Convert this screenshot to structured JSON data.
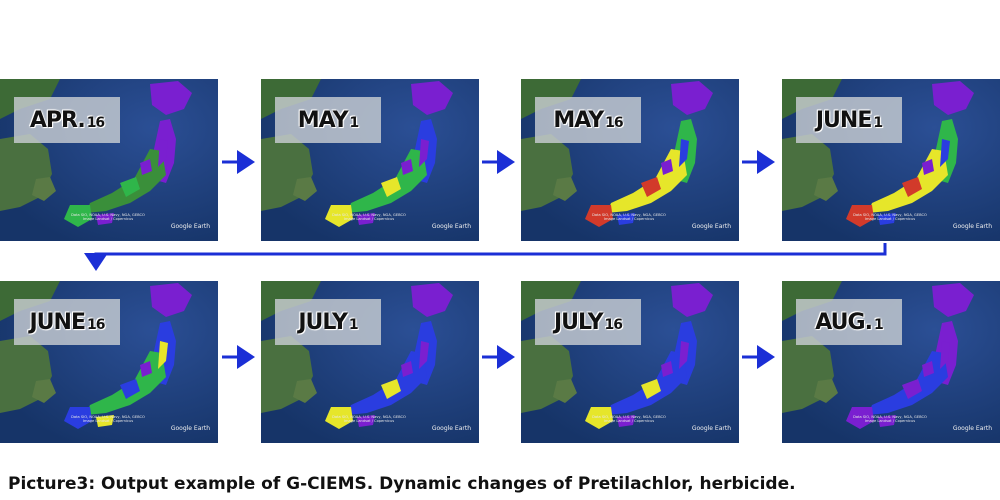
{
  "panels": [
    {
      "month": "APR.",
      "day": "16",
      "credit_lines": [
        "Data SIO, NOAA, U.S. Navy, NGA, GEBCO",
        "Image Landsat / Copernicus"
      ],
      "logo": "Google Earth",
      "dominant": "purple-green"
    },
    {
      "month": "MAY",
      "day": "1",
      "credit_lines": [
        "Data SIO, NOAA, U.S. Navy, NGA, GEBCO",
        "Image Landsat / Copernicus"
      ],
      "logo": "Google Earth",
      "dominant": "purple-blue-green"
    },
    {
      "month": "MAY",
      "day": "16",
      "credit_lines": [
        "Data SIO, NOAA, U.S. Navy, NGA, GEBCO",
        "Image Landsat / Copernicus"
      ],
      "logo": "Google Earth",
      "dominant": "green-yellow"
    },
    {
      "month": "JUNE",
      "day": "1",
      "credit_lines": [
        "Data SIO, NOAA, U.S. Navy, NGA, GEBCO",
        "Image Landsat / Copernicus"
      ],
      "logo": "Google Earth",
      "dominant": "green-yellow"
    },
    {
      "month": "JUNE",
      "day": "16",
      "credit_lines": [
        "Data SIO, NOAA, U.S. Navy, NGA, GEBCO",
        "Image Landsat / Copernicus"
      ],
      "logo": "Google Earth",
      "dominant": "blue-green"
    },
    {
      "month": "JULY",
      "day": "1",
      "credit_lines": [
        "Data SIO, NOAA, U.S. Navy, NGA, GEBCO",
        "Image Landsat / Copernicus"
      ],
      "logo": "Google Earth",
      "dominant": "blue-purple"
    },
    {
      "month": "JULY",
      "day": "16",
      "credit_lines": [
        "Data SIO, NOAA, U.S. Navy, NGA, GEBCO",
        "Image Landsat / Copernicus"
      ],
      "logo": "Google Earth",
      "dominant": "blue-purple"
    },
    {
      "month": "AUG.",
      "day": "1",
      "credit_lines": [
        "Data SIO, NOAA, U.S. Navy, NGA, GEBCO",
        "Image Landsat / Copernicus"
      ],
      "logo": "Google Earth",
      "dominant": "purple"
    }
  ],
  "colors": {
    "arrow": "#1b2fd6",
    "ocean": "#1d3f7c",
    "land_korea": "#3f6b3a",
    "purple": "#7a1fd0",
    "blue": "#2a3de0",
    "green": "#2fb64a",
    "yellow": "#e6e62a",
    "red": "#d23a2a"
  },
  "caption": "Picture3: Output example of G-CIEMS. Dynamic changes of Pretilachlor, herbicide."
}
